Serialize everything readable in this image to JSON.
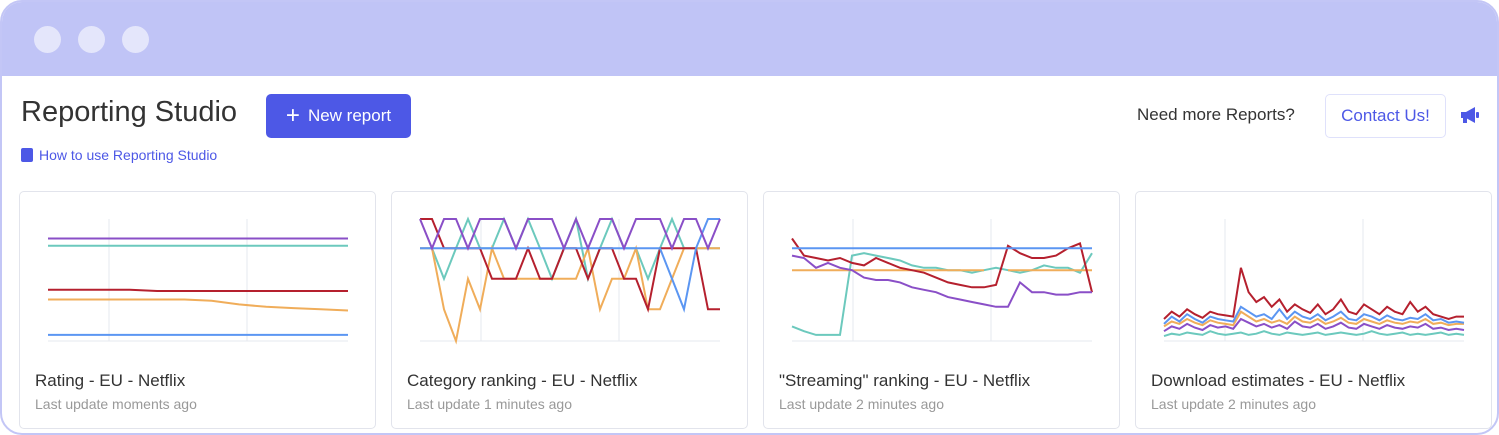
{
  "header": {
    "title": "Reporting Studio",
    "new_report_label": "New report",
    "help_link": "How to use Reporting Studio",
    "need_more": "Need more Reports?",
    "contact_label": "Contact Us!"
  },
  "colors": {
    "accent": "#4d58e6",
    "purple": "#8a4fc7",
    "teal": "#6cc9bd",
    "red": "#b5202e",
    "orange": "#f0ad5a",
    "blue": "#5b96f2"
  },
  "cards": [
    {
      "name": "Rating - EU - Netflix",
      "updated": "Last update moments ago",
      "series": [
        {
          "color": "purple",
          "values": [
            84,
            84,
            84,
            84,
            84,
            84,
            84,
            84,
            84,
            84,
            84,
            84
          ]
        },
        {
          "color": "teal",
          "values": [
            78,
            78,
            78,
            78,
            78,
            78,
            78,
            78,
            78,
            78,
            78,
            78
          ]
        },
        {
          "color": "red",
          "values": [
            42,
            42,
            42,
            42,
            41,
            41,
            41,
            41,
            41,
            41,
            41,
            41
          ]
        },
        {
          "color": "orange",
          "values": [
            34,
            34,
            34,
            34,
            34,
            34,
            33,
            30,
            28,
            27,
            26,
            25
          ]
        },
        {
          "color": "blue",
          "values": [
            5,
            5,
            5,
            5,
            5,
            5,
            5,
            5,
            5,
            5,
            5,
            5
          ]
        }
      ]
    },
    {
      "name": "Category ranking - EU - Netflix",
      "updated": "Last update 1 minutes ago",
      "series": [
        {
          "color": "teal",
          "values": [
            76,
            76,
            51,
            76,
            100,
            76,
            76,
            100,
            76,
            100,
            76,
            51,
            76,
            100,
            51,
            76,
            100,
            76,
            76,
            51,
            76,
            100,
            76,
            76,
            76,
            76
          ]
        },
        {
          "color": "orange",
          "values": [
            76,
            76,
            26,
            0,
            51,
            26,
            76,
            51,
            51,
            51,
            51,
            51,
            51,
            51,
            76,
            26,
            51,
            51,
            76,
            26,
            26,
            51,
            76,
            76,
            76,
            76
          ]
        },
        {
          "color": "red",
          "values": [
            100,
            100,
            76,
            76,
            76,
            76,
            51,
            51,
            51,
            76,
            51,
            51,
            76,
            76,
            51,
            76,
            76,
            51,
            51,
            26,
            76,
            76,
            76,
            76,
            26,
            26
          ]
        },
        {
          "color": "blue",
          "values": [
            76,
            76,
            76,
            76,
            76,
            76,
            76,
            76,
            76,
            76,
            76,
            76,
            76,
            76,
            76,
            76,
            76,
            76,
            76,
            76,
            76,
            51,
            26,
            76,
            100,
            100
          ]
        },
        {
          "color": "purple",
          "values": [
            100,
            76,
            100,
            100,
            76,
            100,
            100,
            100,
            76,
            100,
            100,
            100,
            76,
            100,
            76,
            100,
            100,
            76,
            100,
            100,
            100,
            76,
            100,
            100,
            76,
            100
          ]
        }
      ]
    },
    {
      "name": "\"Streaming\" ranking - EU - Netflix",
      "updated": "Last update 2 minutes ago",
      "series": [
        {
          "color": "teal",
          "values": [
            12,
            8,
            5,
            5,
            5,
            70,
            72,
            70,
            68,
            66,
            62,
            60,
            60,
            58,
            58,
            56,
            58,
            60,
            58,
            56,
            58,
            62,
            60,
            60,
            56,
            72
          ]
        },
        {
          "color": "orange",
          "values": [
            58,
            58,
            58,
            58,
            58,
            58,
            58,
            58,
            58,
            58,
            58,
            58,
            58,
            58,
            58,
            58,
            58,
            null,
            58,
            58,
            58,
            58,
            58,
            58,
            58,
            58
          ]
        },
        {
          "color": "red",
          "values": [
            84,
            70,
            68,
            66,
            68,
            64,
            62,
            68,
            64,
            60,
            58,
            56,
            52,
            48,
            46,
            44,
            44,
            46,
            78,
            72,
            68,
            68,
            70,
            76,
            80,
            40
          ]
        },
        {
          "color": "purple",
          "values": [
            70,
            68,
            60,
            64,
            60,
            58,
            52,
            50,
            50,
            48,
            44,
            42,
            40,
            36,
            34,
            32,
            30,
            28,
            28,
            48,
            40,
            40,
            38,
            38,
            40,
            40
          ]
        },
        {
          "color": "blue",
          "values": [
            76,
            76,
            76,
            76,
            76,
            76,
            76,
            76,
            76,
            76,
            76,
            76,
            76,
            76,
            76,
            76,
            76,
            76,
            76,
            76,
            76,
            76,
            76,
            76,
            76,
            76
          ]
        }
      ]
    },
    {
      "name": "Download estimates - EU - Netflix",
      "updated": "Last update 2 minutes ago",
      "series": [
        {
          "color": "teal",
          "values": [
            4,
            6,
            5,
            7,
            6,
            5,
            8,
            6,
            5,
            6,
            7,
            5,
            6,
            8,
            6,
            5,
            7,
            6,
            5,
            6,
            7,
            5,
            6,
            7,
            6,
            5,
            6,
            8,
            6,
            5,
            6,
            7,
            5,
            6,
            5,
            6,
            7,
            5,
            6,
            5
          ]
        },
        {
          "color": "purple",
          "values": [
            8,
            12,
            10,
            14,
            11,
            9,
            13,
            11,
            12,
            10,
            18,
            15,
            12,
            14,
            11,
            13,
            10,
            16,
            12,
            11,
            14,
            10,
            12,
            15,
            11,
            10,
            14,
            12,
            10,
            13,
            11,
            10,
            12,
            11,
            14,
            10,
            11,
            9,
            10,
            9
          ]
        },
        {
          "color": "orange",
          "values": [
            12,
            16,
            14,
            18,
            15,
            13,
            17,
            15,
            14,
            13,
            24,
            20,
            16,
            18,
            15,
            17,
            14,
            20,
            16,
            15,
            18,
            14,
            16,
            19,
            15,
            14,
            18,
            16,
            14,
            17,
            15,
            14,
            16,
            15,
            18,
            14,
            15,
            13,
            14,
            14
          ]
        },
        {
          "color": "blue",
          "values": [
            14,
            20,
            16,
            22,
            18,
            15,
            20,
            18,
            17,
            16,
            28,
            24,
            20,
            22,
            18,
            26,
            18,
            24,
            20,
            18,
            22,
            17,
            20,
            24,
            18,
            17,
            22,
            20,
            17,
            21,
            18,
            17,
            19,
            18,
            22,
            17,
            18,
            15,
            16,
            15
          ]
        },
        {
          "color": "red",
          "values": [
            18,
            24,
            20,
            26,
            22,
            19,
            24,
            22,
            21,
            20,
            60,
            40,
            32,
            36,
            28,
            34,
            24,
            30,
            26,
            23,
            30,
            22,
            26,
            34,
            24,
            22,
            30,
            26,
            22,
            28,
            24,
            22,
            32,
            24,
            28,
            22,
            20,
            18,
            20,
            20
          ]
        }
      ]
    }
  ]
}
